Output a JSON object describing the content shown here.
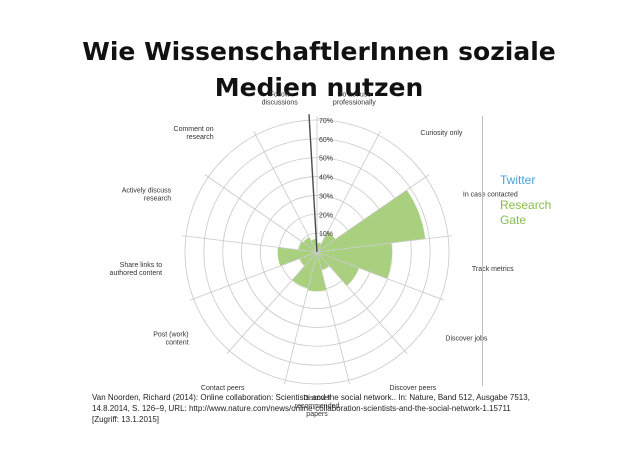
{
  "title": {
    "line1": "Wie WissenschaftlerInnen soziale",
    "line2": "Medien nutzen"
  },
  "legend": {
    "twitter": "Twitter",
    "research_gate": "Research Gate"
  },
  "colors": {
    "research_gate": "#a9d07f",
    "twitter": "#4aa3d8",
    "grid": "#c8c8c8",
    "divider": "#4a4a4a"
  },
  "source": {
    "line1": "Van Noorden, Richard (2014): Online collaboration: Scientists and the social network.. In: Nature, Band 512, Ausgabe 7513,",
    "line2": "14.8.2014, S. 126–9, URL: http://www.nature.com/news/online-collaboration-scientists-and-the-social-network-1.15711",
    "line3": "[Zugriff: 13.1.2015]"
  },
  "chart_data": {
    "type": "polar-area",
    "ticks": [
      "10%",
      "20%",
      "30%",
      "40%",
      "50%",
      "60%",
      "70%"
    ],
    "rlim": [
      0,
      70
    ],
    "grid": true,
    "legend_placement": "right",
    "categories": [
      {
        "label": "Do not use\nprofessionally"
      },
      {
        "label": "Curiosity only"
      },
      {
        "label": "In case contacted"
      },
      {
        "label": "Track metrics"
      },
      {
        "label": "Discover jobs"
      },
      {
        "label": "Discover peers"
      },
      {
        "label": "Discover\nrecommended\npapers"
      },
      {
        "label": "Contact peers"
      },
      {
        "label": "Post (work)\ncontent"
      },
      {
        "label": "Share links to\nauthored content"
      },
      {
        "label": "Actively discuss\nresearch"
      },
      {
        "label": "Comment on\nresearch"
      },
      {
        "label": "Follow\ndiscussions"
      }
    ],
    "series": [
      {
        "name": "Research Gate",
        "values": [
          5,
          12,
          58,
          40,
          24,
          10,
          21,
          20,
          10,
          21,
          10,
          9,
          7
        ]
      }
    ]
  }
}
